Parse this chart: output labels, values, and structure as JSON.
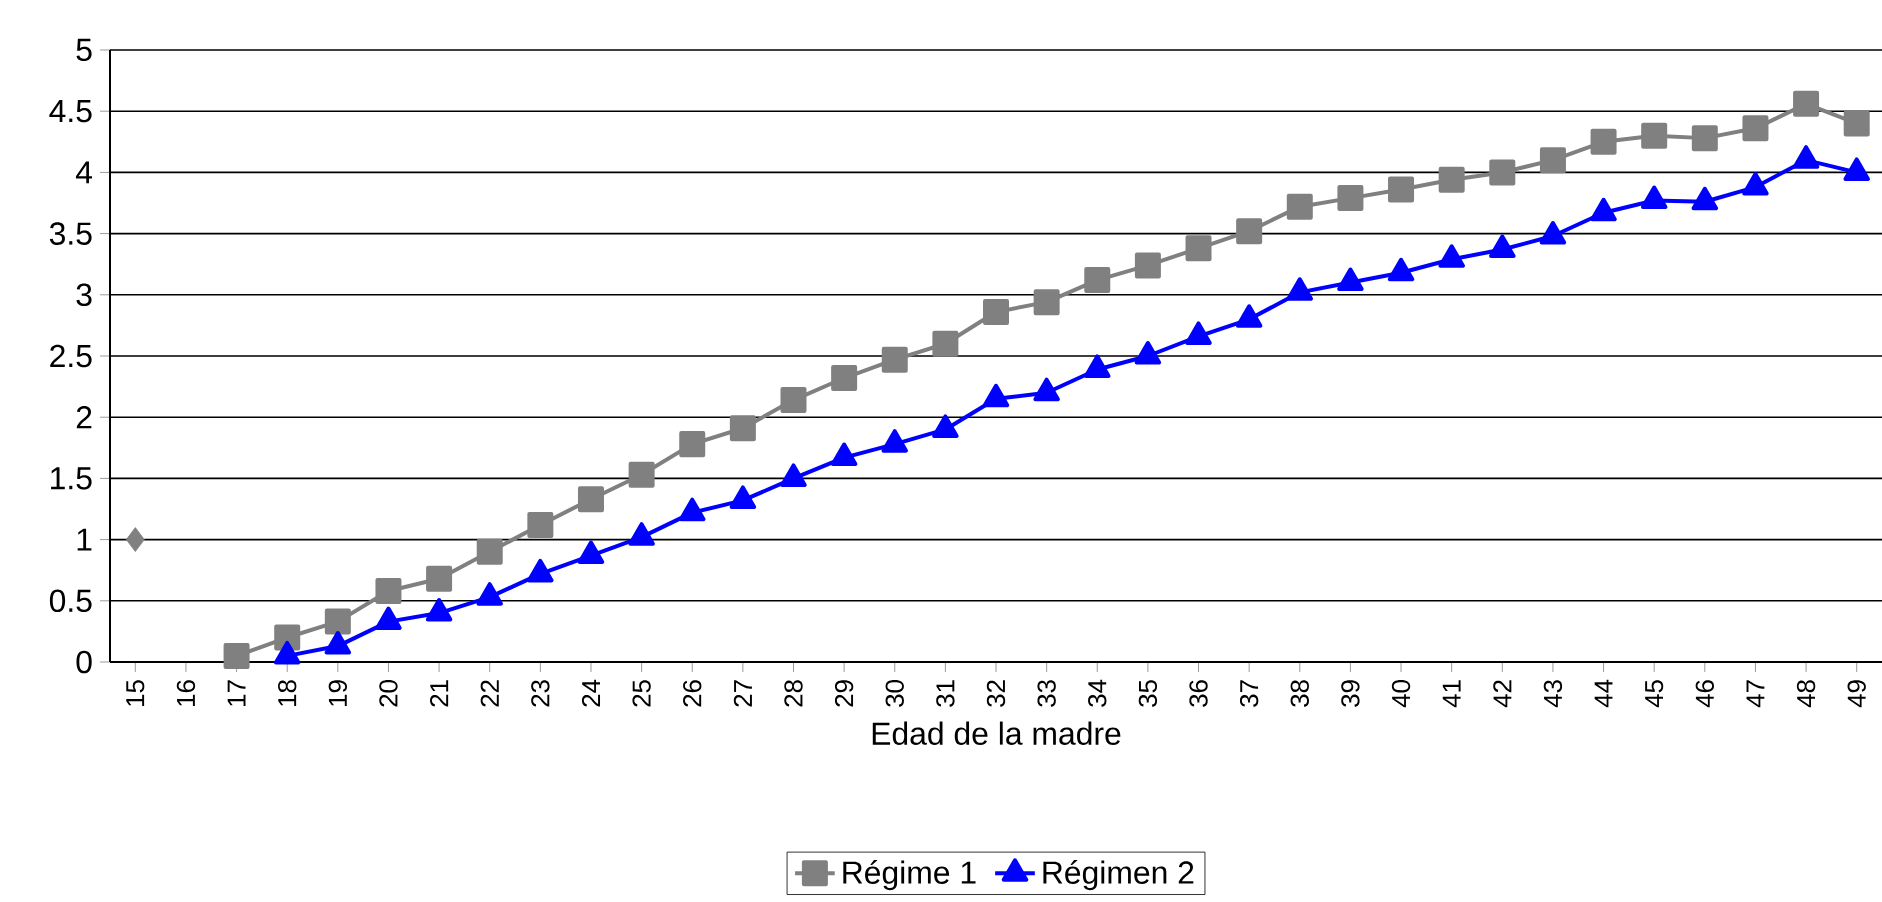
{
  "chart_data": {
    "type": "line",
    "xlabel": "Edad de la madre",
    "categories": [
      "15",
      "16",
      "17",
      "18",
      "19",
      "20",
      "21",
      "22",
      "23",
      "24",
      "25",
      "26",
      "27",
      "28",
      "29",
      "30",
      "31",
      "32",
      "33",
      "34",
      "35",
      "36",
      "37",
      "38",
      "39",
      "40",
      "41",
      "42",
      "43",
      "44",
      "45",
      "46",
      "47",
      "48",
      "49"
    ],
    "series": [
      {
        "name": "Régime 1",
        "color": "#808080",
        "marker": "square",
        "line_style": "solid",
        "values": [
          null,
          null,
          0.05,
          0.2,
          0.33,
          0.58,
          0.68,
          0.9,
          1.12,
          1.33,
          1.53,
          1.78,
          1.91,
          2.14,
          2.32,
          2.47,
          2.6,
          2.86,
          2.94,
          3.12,
          3.24,
          3.38,
          3.52,
          3.72,
          3.79,
          3.86,
          3.94,
          4.0,
          4.1,
          4.25,
          4.3,
          4.28,
          4.36,
          4.56,
          4.4
        ]
      },
      {
        "name": "Régimen 2",
        "color": "#0000ff",
        "marker": "triangle",
        "line_style": "solid",
        "values": [
          null,
          null,
          null,
          0.05,
          0.13,
          0.33,
          0.4,
          0.53,
          0.72,
          0.87,
          1.02,
          1.22,
          1.32,
          1.5,
          1.67,
          1.78,
          1.9,
          2.15,
          2.2,
          2.39,
          2.5,
          2.66,
          2.8,
          3.02,
          3.1,
          3.18,
          3.29,
          3.37,
          3.48,
          3.67,
          3.77,
          3.76,
          3.88,
          4.1,
          4.0
        ]
      },
      {
        "type": "scatter",
        "color": "#808080",
        "marker": "diamond",
        "values": [
          1,
          null,
          null,
          null,
          null,
          null,
          null,
          null,
          null,
          null,
          null,
          null,
          null,
          null,
          null,
          null,
          null,
          null,
          null,
          null,
          null,
          null,
          null,
          null,
          null,
          null,
          null,
          null,
          null,
          null,
          null,
          null,
          null,
          null,
          null
        ]
      }
    ],
    "ylim": [
      0,
      5
    ],
    "yticks": [
      0,
      0.5,
      1,
      1.5,
      2,
      2.5,
      3,
      3.5,
      4,
      4.5,
      5
    ],
    "grid": "y",
    "legend": "bottom"
  }
}
